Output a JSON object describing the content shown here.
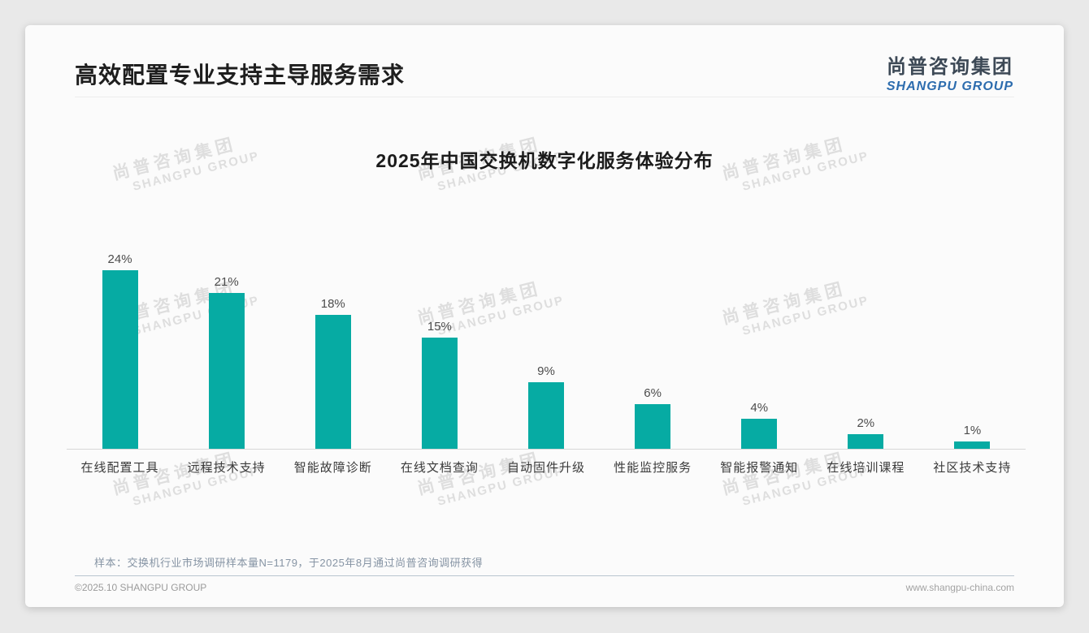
{
  "page": {
    "title": "高效配置专业支持主导服务需求",
    "logo": {
      "cn": "尚普咨询集团",
      "en": "SHANGPU GROUP"
    },
    "watermark": {
      "cn": "尚普咨询集团",
      "en": "SHANGPU GROUP"
    },
    "note": "样本：交换机行业市场调研样本量N=1179，于2025年8月通过尚普咨询调研获得",
    "footer": {
      "left": "©2025.10 SHANGPU GROUP",
      "right": "www.shangpu-china.com"
    }
  },
  "colors": {
    "bar": "#06aba3",
    "logo_cn": "#3d4956",
    "logo_en": "#2c6cae",
    "note_text": "#8694a4"
  },
  "chart_data": {
    "type": "bar",
    "title": "2025年中国交换机数字化服务体验分布",
    "categories": [
      "在线配置工具",
      "远程技术支持",
      "智能故障诊断",
      "在线文档查询",
      "自动固件升级",
      "性能监控服务",
      "智能报警通知",
      "在线培训课程",
      "社区技术支持"
    ],
    "values": [
      24,
      21,
      18,
      15,
      9,
      6,
      4,
      2,
      1
    ],
    "unit": "%",
    "value_label_format": "{value}%",
    "xlabel": "",
    "ylabel": "",
    "ylim": [
      0,
      26
    ],
    "grid": false,
    "legend": "none",
    "data_labels": true,
    "bar_color": "#06aba3"
  }
}
